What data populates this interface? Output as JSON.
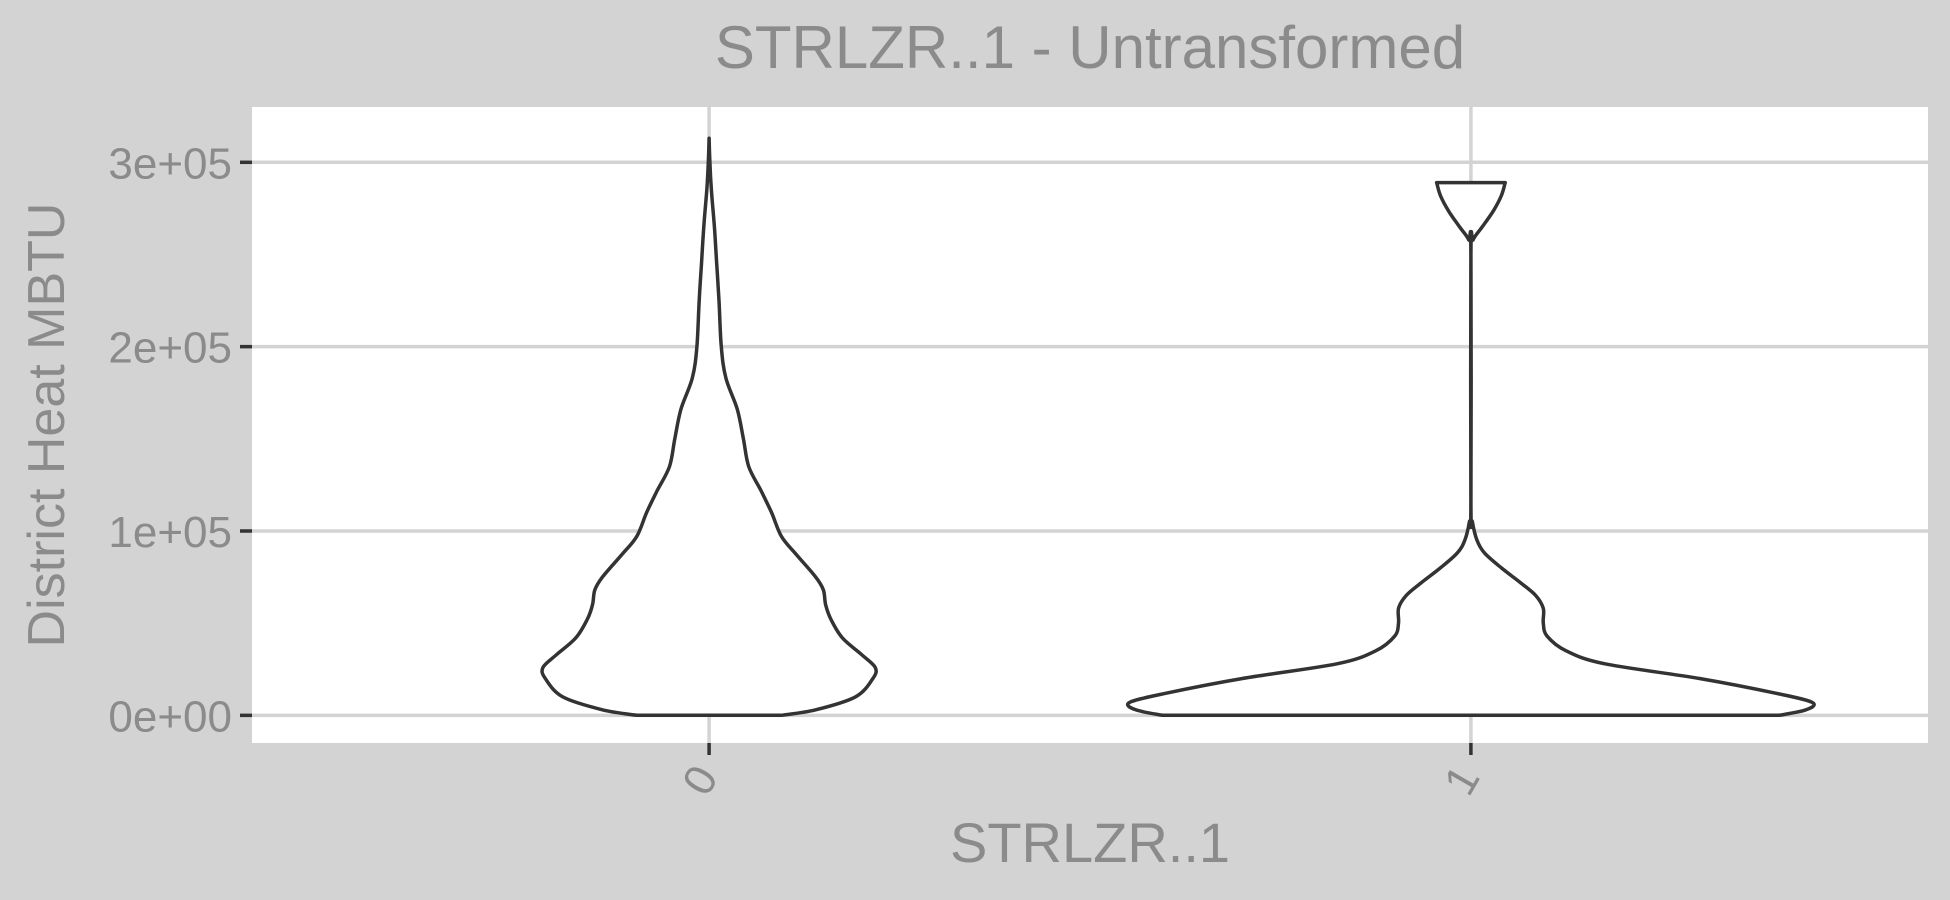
{
  "chart_data": {
    "type": "violin",
    "title": "STRLZR..1 - Untransformed",
    "xlabel": "STRLZR..1",
    "ylabel": "District Heat MBTU",
    "categories": [
      "0",
      "1"
    ],
    "ylim": [
      -15000,
      330000
    ],
    "y_ticks": [
      {
        "value": 0,
        "label": "0e+00"
      },
      {
        "value": 100000,
        "label": "1e+05"
      },
      {
        "value": 200000,
        "label": "2e+05"
      },
      {
        "value": 300000,
        "label": "3e+05"
      }
    ],
    "grid": true,
    "violins": [
      {
        "category": "0",
        "density_profile": [
          {
            "y": 0,
            "halfwidth": 0.095
          },
          {
            "y": 3000,
            "halfwidth": 0.14
          },
          {
            "y": 10000,
            "halfwidth": 0.192
          },
          {
            "y": 20000,
            "halfwidth": 0.215
          },
          {
            "y": 26000,
            "halfwidth": 0.218
          },
          {
            "y": 33000,
            "halfwidth": 0.2
          },
          {
            "y": 42000,
            "halfwidth": 0.175
          },
          {
            "y": 52000,
            "halfwidth": 0.16
          },
          {
            "y": 60000,
            "halfwidth": 0.153
          },
          {
            "y": 68000,
            "halfwidth": 0.15
          },
          {
            "y": 75000,
            "halfwidth": 0.14
          },
          {
            "y": 87000,
            "halfwidth": 0.115
          },
          {
            "y": 97000,
            "halfwidth": 0.095
          },
          {
            "y": 110000,
            "halfwidth": 0.082
          },
          {
            "y": 122000,
            "halfwidth": 0.068
          },
          {
            "y": 135000,
            "halfwidth": 0.052
          },
          {
            "y": 150000,
            "halfwidth": 0.045
          },
          {
            "y": 166000,
            "halfwidth": 0.037
          },
          {
            "y": 183000,
            "halfwidth": 0.022
          },
          {
            "y": 200000,
            "halfwidth": 0.016
          },
          {
            "y": 225000,
            "halfwidth": 0.013
          },
          {
            "y": 245000,
            "halfwidth": 0.01
          },
          {
            "y": 265000,
            "halfwidth": 0.007
          },
          {
            "y": 285000,
            "halfwidth": 0.003
          },
          {
            "y": 300000,
            "halfwidth": 0.001
          },
          {
            "y": 313000,
            "halfwidth": 0.0
          }
        ]
      },
      {
        "category": "1",
        "density_profile": [
          {
            "y": 0,
            "halfwidth": 0.405
          },
          {
            "y": 3000,
            "halfwidth": 0.44
          },
          {
            "y": 7000,
            "halfwidth": 0.448
          },
          {
            "y": 12000,
            "halfwidth": 0.4
          },
          {
            "y": 20000,
            "halfwidth": 0.3
          },
          {
            "y": 28000,
            "halfwidth": 0.175
          },
          {
            "y": 35000,
            "halfwidth": 0.125
          },
          {
            "y": 43000,
            "halfwidth": 0.1
          },
          {
            "y": 50000,
            "halfwidth": 0.095
          },
          {
            "y": 58000,
            "halfwidth": 0.095
          },
          {
            "y": 65000,
            "halfwidth": 0.085
          },
          {
            "y": 72000,
            "halfwidth": 0.065
          },
          {
            "y": 80000,
            "halfwidth": 0.04
          },
          {
            "y": 88000,
            "halfwidth": 0.018
          },
          {
            "y": 95000,
            "halfwidth": 0.008
          },
          {
            "y": 105000,
            "halfwidth": 0.002
          },
          {
            "y": 115000,
            "halfwidth": 0.0
          },
          {
            "y": 250000,
            "halfwidth": 0.0
          },
          {
            "y": 258000,
            "halfwidth": 0.003
          },
          {
            "y": 265000,
            "halfwidth": 0.015
          },
          {
            "y": 274000,
            "halfwidth": 0.03
          },
          {
            "y": 282000,
            "halfwidth": 0.04
          },
          {
            "y": 289000,
            "halfwidth": 0.045
          }
        ]
      }
    ]
  },
  "colors": {
    "outer_background": "#d3d3d3",
    "panel_background": "#ffffff",
    "grid": "#d3d3d3",
    "text": "#8b8b8b",
    "violin_outline": "#333333",
    "violin_fill": "#ffffff"
  }
}
